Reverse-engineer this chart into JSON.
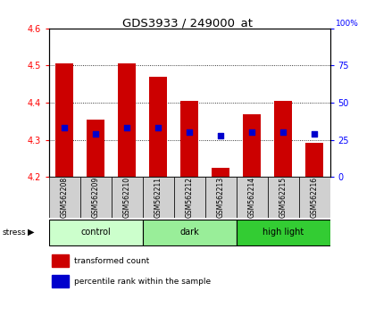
{
  "title": "GDS3933 / 249000_at",
  "samples": [
    "GSM562208",
    "GSM562209",
    "GSM562210",
    "GSM562211",
    "GSM562212",
    "GSM562213",
    "GSM562214",
    "GSM562215",
    "GSM562216"
  ],
  "groups": [
    {
      "label": "control",
      "indices": [
        0,
        1,
        2
      ],
      "color": "#ccffcc"
    },
    {
      "label": "dark",
      "indices": [
        3,
        4,
        5
      ],
      "color": "#99ee99"
    },
    {
      "label": "high light",
      "indices": [
        6,
        7,
        8
      ],
      "color": "#33cc33"
    }
  ],
  "red_values": [
    4.505,
    4.355,
    4.505,
    4.47,
    4.405,
    4.225,
    4.368,
    4.405,
    4.293
  ],
  "blue_values_pct": [
    33,
    29,
    33,
    33,
    30,
    28,
    30,
    30,
    29
  ],
  "ylim_left": [
    4.2,
    4.6
  ],
  "ylim_right": [
    0,
    100
  ],
  "yticks_left": [
    4.2,
    4.3,
    4.4,
    4.5,
    4.6
  ],
  "yticks_right": [
    0,
    25,
    50,
    75,
    100
  ],
  "bar_color": "#cc0000",
  "dot_color": "#0000cc",
  "bar_bottom": 4.2,
  "bar_width": 0.55,
  "dot_size": 15,
  "grid_color": "black",
  "bg_color": "white",
  "stress_label": "stress",
  "legend_red": "transformed count",
  "legend_blue": "percentile rank within the sample",
  "label_box_color": "#d0d0d0",
  "fig_width": 4.2,
  "fig_height": 3.54,
  "dpi": 100
}
